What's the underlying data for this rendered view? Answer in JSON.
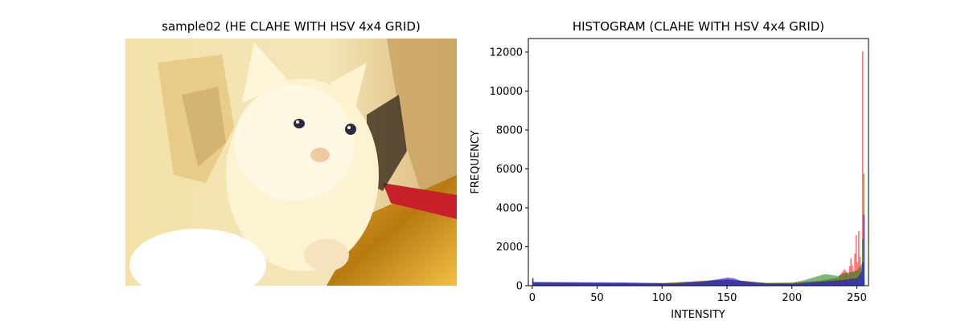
{
  "left_panel": {
    "title": "sample02 (HE CLAHE WITH HSV 4x4 GRID)"
  },
  "chart_data": {
    "type": "bar",
    "title": "HISTOGRAM (CLAHE WITH HSV 4x4 GRID)",
    "xlabel": "INTENSITY",
    "ylabel": "FREQUENCY",
    "xlim": [
      -3,
      259
    ],
    "ylim": [
      0,
      12700
    ],
    "xticks": [
      0,
      50,
      100,
      150,
      200,
      250
    ],
    "yticks": [
      0,
      2000,
      4000,
      6000,
      8000,
      10000,
      12000
    ],
    "grid": false,
    "legend": "none",
    "series": [
      {
        "color": "#ff0000",
        "points": [
          [
            0,
            380
          ],
          [
            1,
            150
          ],
          [
            10,
            170
          ],
          [
            50,
            150
          ],
          [
            100,
            130
          ],
          [
            150,
            330
          ],
          [
            180,
            140
          ],
          [
            200,
            150
          ],
          [
            220,
            250
          ],
          [
            235,
            400
          ],
          [
            240,
            850
          ],
          [
            243,
            600
          ],
          [
            245,
            1400
          ],
          [
            247,
            700
          ],
          [
            249,
            2600
          ],
          [
            250,
            1200
          ],
          [
            251,
            2800
          ],
          [
            252,
            1500
          ],
          [
            253,
            900
          ],
          [
            254,
            12050
          ],
          [
            255,
            300
          ]
        ]
      },
      {
        "color": "#008000",
        "points": [
          [
            0,
            300
          ],
          [
            1,
            160
          ],
          [
            10,
            160
          ],
          [
            50,
            150
          ],
          [
            100,
            130
          ],
          [
            150,
            300
          ],
          [
            180,
            140
          ],
          [
            200,
            160
          ],
          [
            210,
            300
          ],
          [
            220,
            500
          ],
          [
            225,
            600
          ],
          [
            230,
            550
          ],
          [
            235,
            500
          ],
          [
            240,
            650
          ],
          [
            245,
            700
          ],
          [
            250,
            800
          ],
          [
            253,
            1100
          ],
          [
            254,
            2400
          ],
          [
            255,
            5750
          ]
        ]
      },
      {
        "color": "#0000ff",
        "points": [
          [
            0,
            400
          ],
          [
            1,
            200
          ],
          [
            10,
            190
          ],
          [
            30,
            180
          ],
          [
            50,
            170
          ],
          [
            70,
            165
          ],
          [
            90,
            140
          ],
          [
            110,
            120
          ],
          [
            130,
            200
          ],
          [
            140,
            300
          ],
          [
            150,
            420
          ],
          [
            155,
            380
          ],
          [
            160,
            250
          ],
          [
            170,
            160
          ],
          [
            180,
            120
          ],
          [
            200,
            100
          ],
          [
            220,
            200
          ],
          [
            240,
            300
          ],
          [
            250,
            400
          ],
          [
            253,
            700
          ],
          [
            254,
            1200
          ],
          [
            255,
            3650
          ]
        ]
      }
    ]
  }
}
